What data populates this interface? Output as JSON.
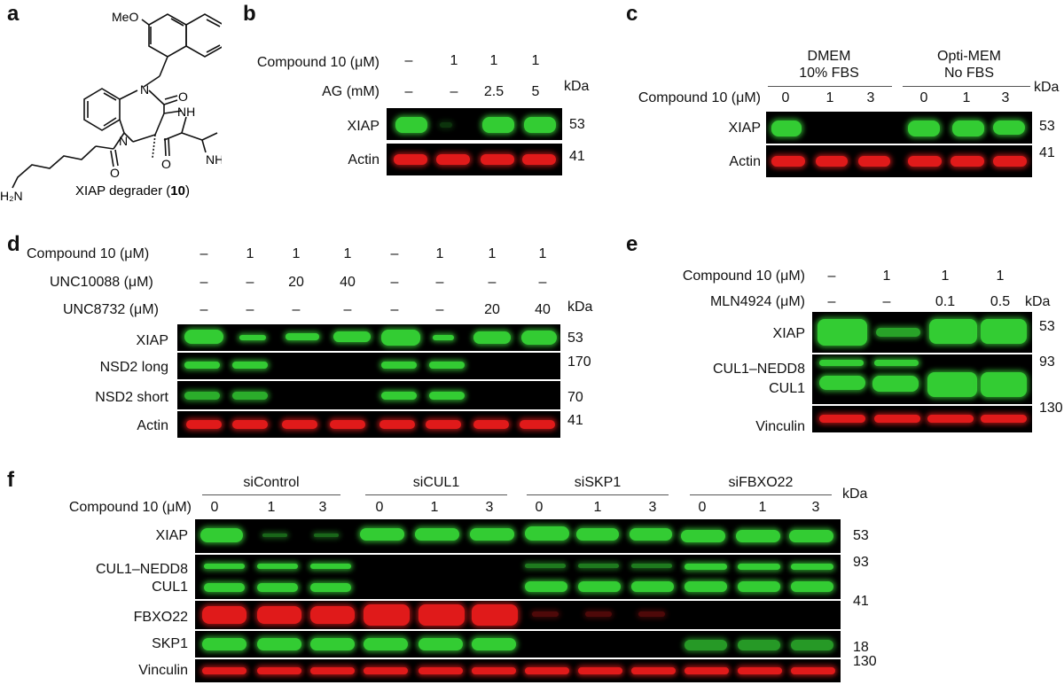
{
  "panels": {
    "a": {
      "letter": "a",
      "ome_label": "MeO",
      "n1": "N",
      "n2": "N",
      "o1": "O",
      "o2": "O",
      "o3": "O",
      "nh_label": "NH",
      "nhme_label": "NHMe",
      "h2n_label": "H₂N",
      "caption": "XIAP degrader (",
      "caption_bold": "10",
      "caption_end": ")"
    },
    "b": {
      "letter": "b",
      "rows": [
        "Compound 10 (μM)",
        "AG (mM)"
      ],
      "compound": [
        "–",
        "1",
        "1",
        "1"
      ],
      "ag": [
        "–",
        "–",
        "2.5",
        "5"
      ],
      "blots": [
        "XIAP",
        "Actin"
      ],
      "kda_label": "kDa",
      "kda": [
        "53",
        "41"
      ]
    },
    "c": {
      "letter": "c",
      "groups": [
        "DMEM\n10% FBS",
        "Opti-MEM\nNo FBS"
      ],
      "group1_l1": "DMEM",
      "group1_l2": "10% FBS",
      "group2_l1": "Opti-MEM",
      "group2_l2": "No FBS",
      "row": "Compound 10 (μM)",
      "compound": [
        "0",
        "1",
        "3",
        "0",
        "1",
        "3"
      ],
      "blots": [
        "XIAP",
        "Actin"
      ],
      "kda_label": "kDa",
      "kda": [
        "53",
        "41"
      ]
    },
    "d": {
      "letter": "d",
      "rows": [
        "Compound 10 (μM)",
        "UNC10088 (μM)",
        "UNC8732 (μM)"
      ],
      "compound": [
        "–",
        "1",
        "1",
        "1",
        "–",
        "1",
        "1",
        "1"
      ],
      "unc10088": [
        "–",
        "–",
        "20",
        "40",
        "–",
        "–",
        "–",
        "–"
      ],
      "unc8732": [
        "–",
        "–",
        "–",
        "–",
        "–",
        "–",
        "20",
        "40"
      ],
      "blots": [
        "XIAP",
        "NSD2 long",
        "NSD2 short",
        "Actin"
      ],
      "kda_label": "kDa",
      "kda": [
        "53",
        "170",
        "70",
        "41"
      ]
    },
    "e": {
      "letter": "e",
      "rows": [
        "Compound 10 (μM)",
        "MLN4924 (μM)"
      ],
      "compound": [
        "–",
        "1",
        "1",
        "1"
      ],
      "mln": [
        "–",
        "–",
        "0.1",
        "0.5"
      ],
      "blots": [
        "XIAP",
        "CUL1–NEDD8",
        "CUL1",
        "Vinculin"
      ],
      "kda_label": "kDa",
      "kda": [
        "53",
        "93",
        "130"
      ]
    },
    "f": {
      "letter": "f",
      "groups": [
        "siControl",
        "siCUL1",
        "siSKP1",
        "siFBXO22"
      ],
      "row": "Compound 10 (μM)",
      "compound": [
        "0",
        "1",
        "3",
        "0",
        "1",
        "3",
        "0",
        "1",
        "3",
        "0",
        "1",
        "3"
      ],
      "blots": [
        "XIAP",
        "CUL1–NEDD8",
        "CUL1",
        "FBXO22",
        "SKP1",
        "Vinculin"
      ],
      "kda_label": "kDa",
      "kda": [
        "53",
        "93",
        "41",
        "18",
        "130"
      ]
    }
  },
  "colors": {
    "green_band": "#33cc33",
    "red_band": "#e01a1a",
    "blot_bg": "#000000"
  }
}
